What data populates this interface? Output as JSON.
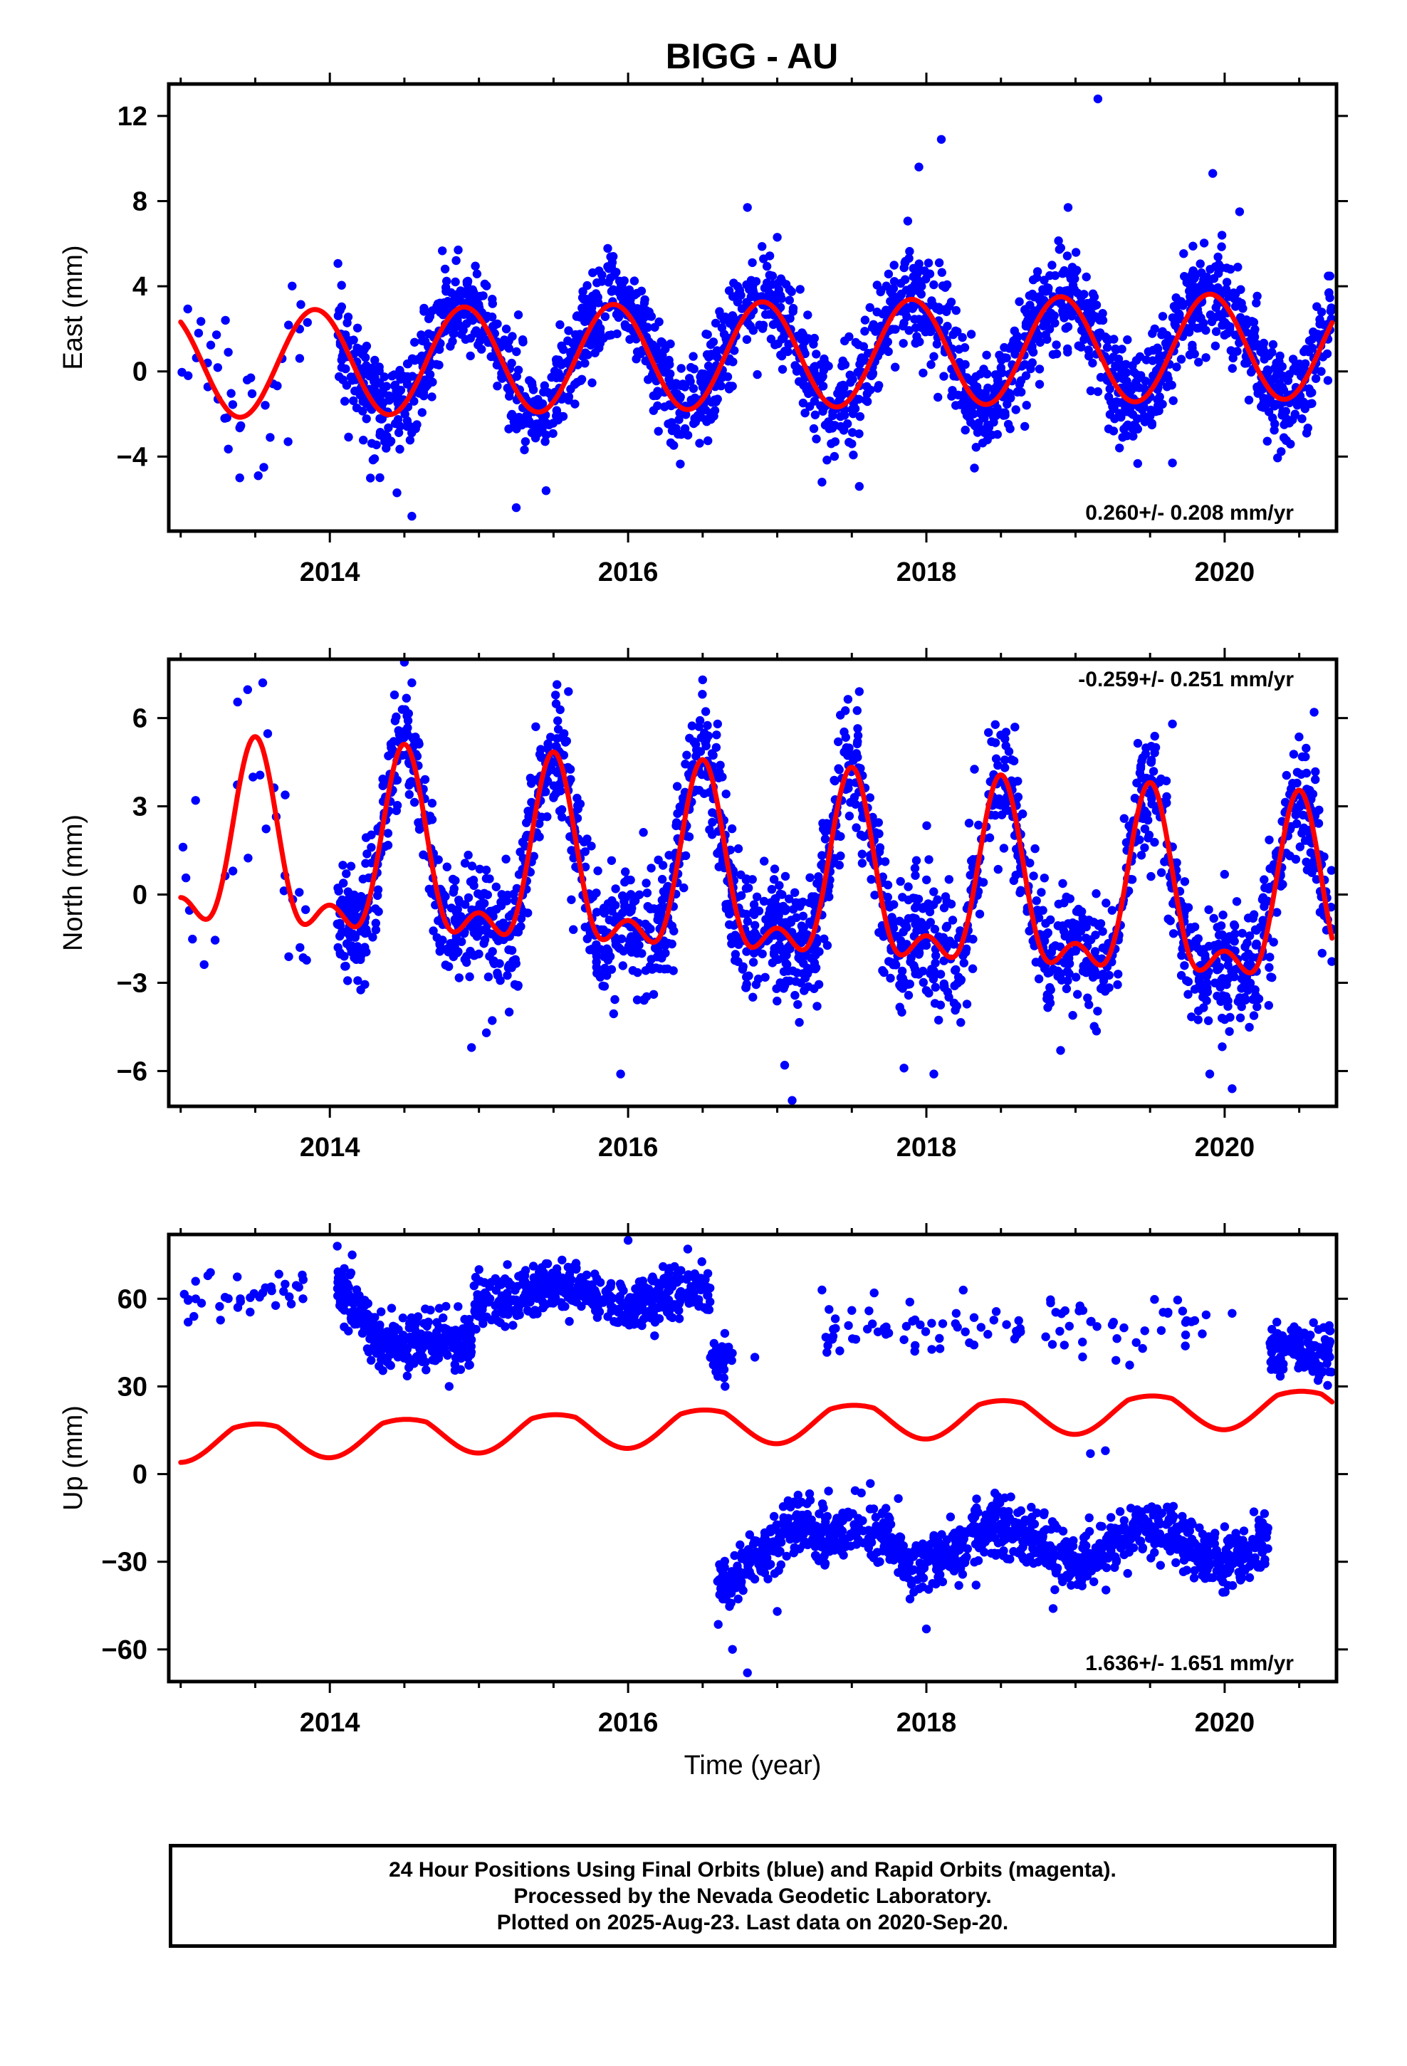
{
  "title": "BIGG - AU",
  "footer": {
    "line1": "24 Hour Positions Using Final Orbits (blue) and Rapid Orbits (magenta).",
    "line2": "Processed by the Nevada Geodetic Laboratory.",
    "line3": "Plotted on 2025-Aug-23. Last data on 2020-Sep-20."
  },
  "colors": {
    "points": "#0000ff",
    "fit": "#ff0000",
    "frame": "#000000"
  },
  "chart_data": [
    {
      "type": "scatter",
      "title": "BIGG - AU",
      "ylabel": "East (mm)",
      "xlabel": "",
      "xlim": [
        2012.92,
        2020.75
      ],
      "ylim": [
        -7.5,
        13.5
      ],
      "xticks": [
        2014,
        2016,
        2018,
        2020
      ],
      "yticks": [
        -4,
        0,
        4,
        8,
        12
      ],
      "ytick_labels": [
        "−4",
        "0",
        "4",
        "8",
        "12"
      ],
      "rate_label": "0.260+/- 0.208 mm/yr",
      "rate_position": "bottom-right",
      "series": [
        {
          "kind": "points",
          "samples": [
            [
              2013.05,
              -0.2
            ],
            [
              2013.12,
              1.8
            ],
            [
              2013.18,
              0.4
            ],
            [
              2013.25,
              -1.3
            ],
            [
              2013.3,
              2.4
            ],
            [
              2013.4,
              -2.6
            ],
            [
              2013.47,
              -0.3
            ],
            [
              2013.52,
              -4.9
            ],
            [
              2013.6,
              -3.1
            ],
            [
              2013.68,
              0.6
            ],
            [
              2013.72,
              -3.3
            ],
            [
              2013.85,
              2.3
            ],
            [
              2014.1,
              -1.4
            ],
            [
              2014.3,
              -4.1
            ],
            [
              2014.45,
              -5.7
            ],
            [
              2014.55,
              -6.8
            ],
            [
              2014.85,
              2.1
            ],
            [
              2015.2,
              -2.7
            ],
            [
              2015.25,
              -6.4
            ],
            [
              2015.45,
              -5.6
            ],
            [
              2015.9,
              5.4
            ],
            [
              2016.8,
              7.7
            ],
            [
              2017.0,
              6.3
            ],
            [
              2017.3,
              -5.2
            ],
            [
              2017.55,
              -5.4
            ],
            [
              2017.95,
              9.6
            ],
            [
              2018.1,
              10.9
            ],
            [
              2018.95,
              7.7
            ],
            [
              2019.15,
              12.8
            ],
            [
              2019.5,
              -2.1
            ],
            [
              2019.65,
              -4.3
            ],
            [
              2019.92,
              9.3
            ],
            [
              2020.1,
              7.5
            ],
            [
              2020.55,
              -2.9
            ],
            [
              2020.7,
              3.7
            ]
          ],
          "model": {
            "t0": 2013.0,
            "start": 2014.05,
            "end": 2020.72,
            "offset": 0.4,
            "trend": 0.12,
            "amp1": 2.5,
            "peak1": 2013.9,
            "amp2": 0.0,
            "peak2": 0.0,
            "noise": 1.15,
            "pts_per_year": 330,
            "gaps": [],
            "early": {
              "start": 2013.0,
              "end": 2013.85,
              "n": 28
            }
          }
        },
        {
          "kind": "fit",
          "model": {
            "start": 2013.0,
            "end": 2020.72,
            "t0": 2013.0,
            "offset": 0.3,
            "trend": 0.12,
            "amp1": 2.5,
            "peak1": 2013.9,
            "amp2": 0.0,
            "peak2": 0.0
          }
        }
      ]
    },
    {
      "type": "scatter",
      "ylabel": "North (mm)",
      "xlabel": "",
      "xlim": [
        2012.92,
        2020.75
      ],
      "ylim": [
        -7.2,
        8.0
      ],
      "xticks": [
        2014,
        2016,
        2018,
        2020
      ],
      "yticks": [
        -6,
        -3,
        0,
        3,
        6
      ],
      "ytick_labels": [
        "−6",
        "−3",
        "0",
        "3",
        "6"
      ],
      "rate_label": "-0.259+/- 0.251 mm/yr",
      "rate_position": "top-right",
      "series": [
        {
          "kind": "points",
          "samples": [
            [
              2013.1,
              3.2
            ],
            [
              2013.35,
              0.8
            ],
            [
              2013.55,
              7.2
            ],
            [
              2013.8,
              -1.8
            ],
            [
              2014.5,
              7.9
            ],
            [
              2014.55,
              7.2
            ],
            [
              2014.95,
              -5.2
            ],
            [
              2015.05,
              -4.7
            ],
            [
              2015.6,
              6.9
            ],
            [
              2015.95,
              -6.1
            ],
            [
              2016.5,
              7.3
            ],
            [
              2016.6,
              5.8
            ],
            [
              2017.05,
              -5.8
            ],
            [
              2017.1,
              -7.0
            ],
            [
              2017.55,
              6.9
            ],
            [
              2017.85,
              -5.9
            ],
            [
              2018.05,
              -6.1
            ],
            [
              2018.9,
              -5.3
            ],
            [
              2019.65,
              5.8
            ],
            [
              2019.9,
              -6.1
            ],
            [
              2020.05,
              -6.6
            ],
            [
              2020.6,
              6.2
            ]
          ],
          "model": {
            "t0": 2013.0,
            "start": 2014.05,
            "end": 2020.72,
            "offset": 1.3,
            "trend": -0.26,
            "amp1": 2.8,
            "peak1": 2013.5,
            "amp2": 1.4,
            "peak2": 2013.5,
            "noise": 1.05,
            "pts_per_year": 330,
            "gaps": [],
            "early": {
              "start": 2013.0,
              "end": 2013.85,
              "n": 26
            }
          }
        },
        {
          "kind": "fit",
          "model": {
            "start": 2013.0,
            "end": 2020.72,
            "t0": 2013.0,
            "offset": 1.3,
            "trend": -0.26,
            "amp1": 2.8,
            "peak1": 2013.5,
            "amp2": 1.4,
            "peak2": 2013.5
          }
        }
      ]
    },
    {
      "type": "scatter",
      "ylabel": "Up (mm)",
      "xlabel": "Time (year)",
      "xlim": [
        2012.92,
        2020.75
      ],
      "ylim": [
        -71,
        82
      ],
      "xticks": [
        2014,
        2016,
        2018,
        2020
      ],
      "yticks": [
        -60,
        -30,
        0,
        30,
        60
      ],
      "ytick_labels": [
        "−60",
        "−30",
        "0",
        "30",
        "60"
      ],
      "rate_label": "1.636+/- 1.651 mm/yr",
      "rate_position": "bottom-right",
      "series": [
        {
          "kind": "points",
          "name_hint": "upper cluster",
          "samples": [
            [
              2013.05,
              52
            ],
            [
              2013.1,
              66
            ],
            [
              2013.2,
              69
            ],
            [
              2013.4,
              60
            ],
            [
              2013.55,
              62
            ],
            [
              2013.7,
              65
            ],
            [
              2013.82,
              60
            ],
            [
              2014.05,
              78
            ],
            [
              2014.15,
              75
            ],
            [
              2014.8,
              30
            ],
            [
              2015.0,
              70
            ],
            [
              2015.45,
              72
            ],
            [
              2016.0,
              80
            ],
            [
              2016.4,
              77
            ],
            [
              2016.65,
              30
            ],
            [
              2016.85,
              40
            ],
            [
              2017.3,
              63
            ],
            [
              2017.5,
              56
            ],
            [
              2017.65,
              62
            ],
            [
              2017.85,
              46
            ],
            [
              2018.2,
              55
            ],
            [
              2018.8,
              47
            ],
            [
              2019.05,
              56
            ],
            [
              2019.45,
              43
            ],
            [
              2019.85,
              48
            ],
            [
              2020.05,
              55
            ],
            [
              2020.35,
              52
            ],
            [
              2020.7,
              35
            ]
          ],
          "segments": [
            {
              "start": 2014.05,
              "end": 2014.95,
              "base": 45,
              "noise": 4.5,
              "n": 330,
              "ramp_from": 65
            },
            {
              "start": 2014.95,
              "end": 2016.55,
              "base": 61,
              "noise": 4.2,
              "n": 480,
              "wave": 3
            },
            {
              "start": 2016.55,
              "end": 2016.7,
              "base": 40,
              "noise": 4,
              "n": 30
            },
            {
              "start": 2020.3,
              "end": 2020.72,
              "base": 42,
              "noise": 4,
              "n": 140
            },
            {
              "start": 2017.3,
              "end": 2019.9,
              "base": 49,
              "noise": 5,
              "n": 90
            },
            {
              "start": 2013.0,
              "end": 2013.85,
              "base": 61,
              "noise": 4,
              "n": 30
            }
          ]
        },
        {
          "kind": "points",
          "name_hint": "lower cluster",
          "samples": [
            [
              2016.7,
              -60
            ],
            [
              2016.8,
              -68
            ],
            [
              2017.0,
              -47
            ],
            [
              2018.0,
              -53
            ],
            [
              2018.85,
              -46
            ],
            [
              2019.1,
              7
            ],
            [
              2019.2,
              8
            ],
            [
              2018.9,
              -25
            ],
            [
              2020.0,
              -18
            ]
          ],
          "segments": [
            {
              "start": 2016.6,
              "end": 2017.25,
              "base": -40,
              "noise": 4.5,
              "n": 220,
              "ramp_to": -18
            },
            {
              "start": 2017.25,
              "end": 2020.3,
              "base": -24,
              "noise": 5,
              "n": 900,
              "wave": 6
            }
          ]
        },
        {
          "kind": "fit",
          "model": {
            "start": 2013.0,
            "end": 2020.72,
            "t0": 2013.0,
            "offset": 11,
            "trend": 1.6,
            "amp1": 7,
            "peak1": 2013.5,
            "amp2": 0.0,
            "peak2": 0.0,
            "clip_peak": 0.6
          }
        }
      ]
    }
  ]
}
